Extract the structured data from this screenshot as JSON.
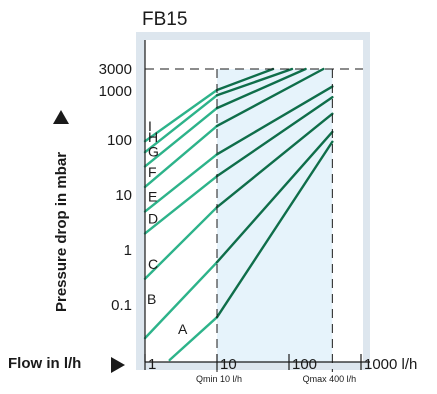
{
  "chart_data": {
    "type": "line",
    "title": "FB15",
    "xlabel": "Flow in l/h",
    "ylabel": "Pressure drop in mbar",
    "x_scale": "log",
    "y_scale": "log",
    "x_ticks": [
      "1",
      "10",
      "100",
      "1000 l/h"
    ],
    "y_ticks": [
      "3000",
      "1000",
      "100",
      "10",
      "1",
      "0.1"
    ],
    "xlim": [
      1,
      1000
    ],
    "ylim": [
      0.01,
      3000
    ],
    "qmin_label": "Qmin 10 l/h",
    "qmax_label": "Qmax 400 l/h",
    "qmin": 10,
    "qmax": 400,
    "max_pressure": 3000,
    "operating_range": [
      10,
      400
    ],
    "colors": {
      "light_line": "#2db38a",
      "dark_line": "#0f6e4a",
      "region_fill": "#e6f3fb",
      "frame_band": "#dde6ee",
      "axis": "#1a1a1a"
    },
    "series": [
      {
        "name": "A",
        "points": [
          [
            2.2,
            0.01
          ],
          [
            10,
            0.06
          ],
          [
            400,
            93
          ]
        ]
      },
      {
        "name": "B",
        "points": [
          [
            1,
            0.025
          ],
          [
            10,
            0.6
          ],
          [
            400,
            140
          ]
        ]
      },
      {
        "name": "C",
        "points": [
          [
            1,
            0.3
          ],
          [
            10,
            6
          ],
          [
            400,
            300
          ]
        ]
      },
      {
        "name": "D",
        "points": [
          [
            1,
            2
          ],
          [
            10,
            22
          ],
          [
            400,
            600
          ]
        ]
      },
      {
        "name": "E",
        "points": [
          [
            1,
            5
          ],
          [
            10,
            55
          ],
          [
            400,
            1250
          ]
        ]
      },
      {
        "name": "F",
        "points": [
          [
            1,
            14
          ],
          [
            10,
            180
          ],
          [
            300,
            3000
          ]
        ]
      },
      {
        "name": "G",
        "points": [
          [
            1,
            33
          ],
          [
            10,
            380
          ],
          [
            170,
            3000
          ]
        ]
      },
      {
        "name": "H",
        "points": [
          [
            1,
            60
          ],
          [
            10,
            650
          ],
          [
            110,
            3000
          ]
        ]
      },
      {
        "name": "I",
        "points": [
          [
            1,
            95
          ],
          [
            10,
            1050
          ],
          [
            60,
            3000
          ]
        ]
      }
    ]
  }
}
